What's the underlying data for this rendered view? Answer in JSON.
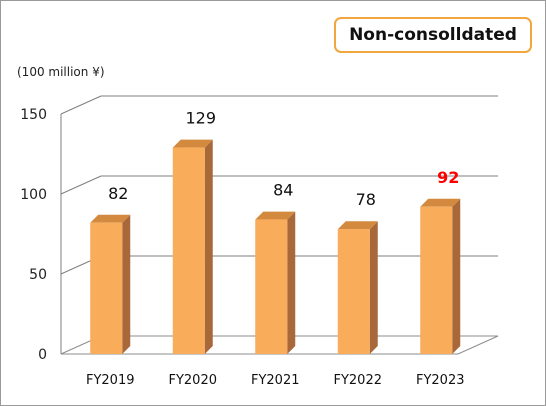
{
  "badge": "Non-consolldated",
  "unit_label": "(100 million ¥)",
  "colors": {
    "bar_front": "#f9ac5a",
    "bar_side": "#a8683a",
    "bar_top": "#d48a3e",
    "highlight_label": "#ff0000",
    "badge_border": "#f2a640"
  },
  "chart_data": {
    "type": "bar",
    "three_d": true,
    "categories": [
      "FY2019",
      "FY2020",
      "FY2021",
      "FY2022",
      "FY2023"
    ],
    "values": [
      82,
      129,
      84,
      78,
      92
    ],
    "data_labels": [
      "82",
      "129",
      "84",
      "78",
      "92"
    ],
    "highlighted_index": 4,
    "yticks": [
      0,
      50,
      100,
      150
    ],
    "ylim": [
      0,
      150
    ],
    "grid": true,
    "legend": "none"
  }
}
